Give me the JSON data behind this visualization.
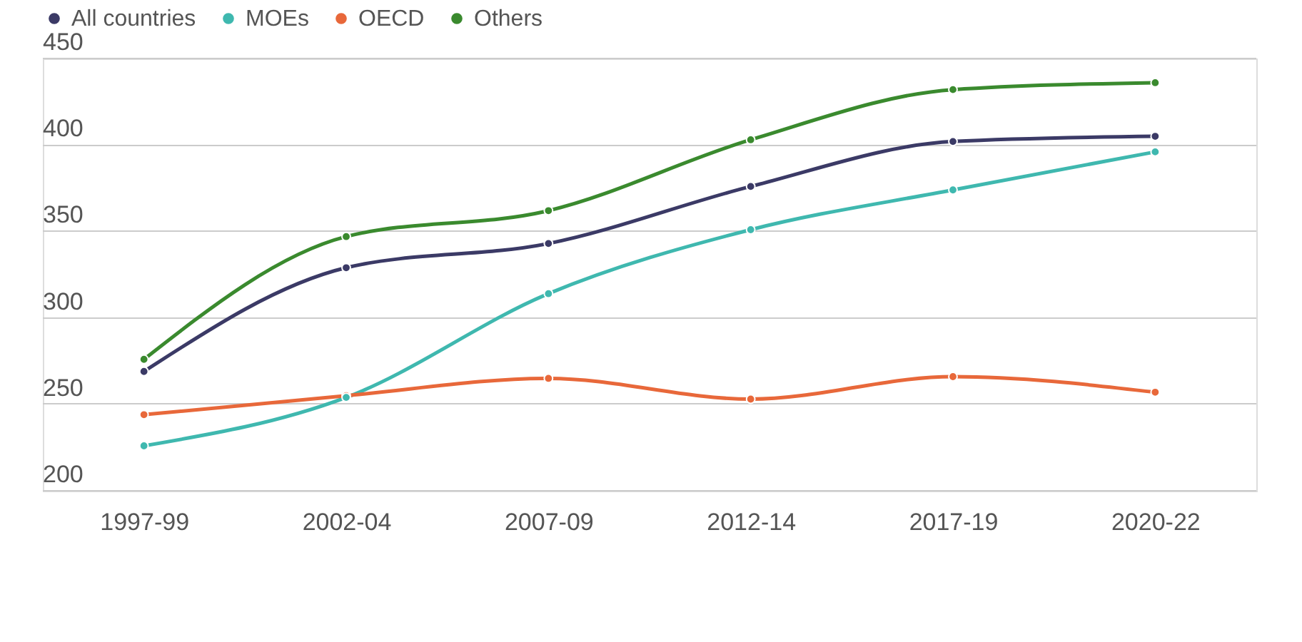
{
  "chart_data": {
    "type": "line",
    "categories": [
      "1997-99",
      "2002-04",
      "2007-09",
      "2012-14",
      "2017-19",
      "2020-22"
    ],
    "series": [
      {
        "name": "All countries",
        "color": "#3b3a66",
        "values": [
          269,
          329,
          343,
          376,
          402,
          405
        ]
      },
      {
        "name": "MOEs",
        "color": "#3fb8af",
        "values": [
          226,
          254,
          314,
          351,
          374,
          396
        ]
      },
      {
        "name": "OECD",
        "color": "#e8683a",
        "values": [
          244,
          255,
          265,
          253,
          266,
          257
        ]
      },
      {
        "name": "Others",
        "color": "#3a8a2e",
        "values": [
          276,
          347,
          362,
          403,
          432,
          436
        ]
      }
    ],
    "ylim": [
      200,
      450
    ],
    "yticks": [
      200,
      250,
      300,
      350,
      400,
      450
    ],
    "grid": "y",
    "legend": "top left",
    "marker": "circle",
    "line_style": "solid"
  }
}
